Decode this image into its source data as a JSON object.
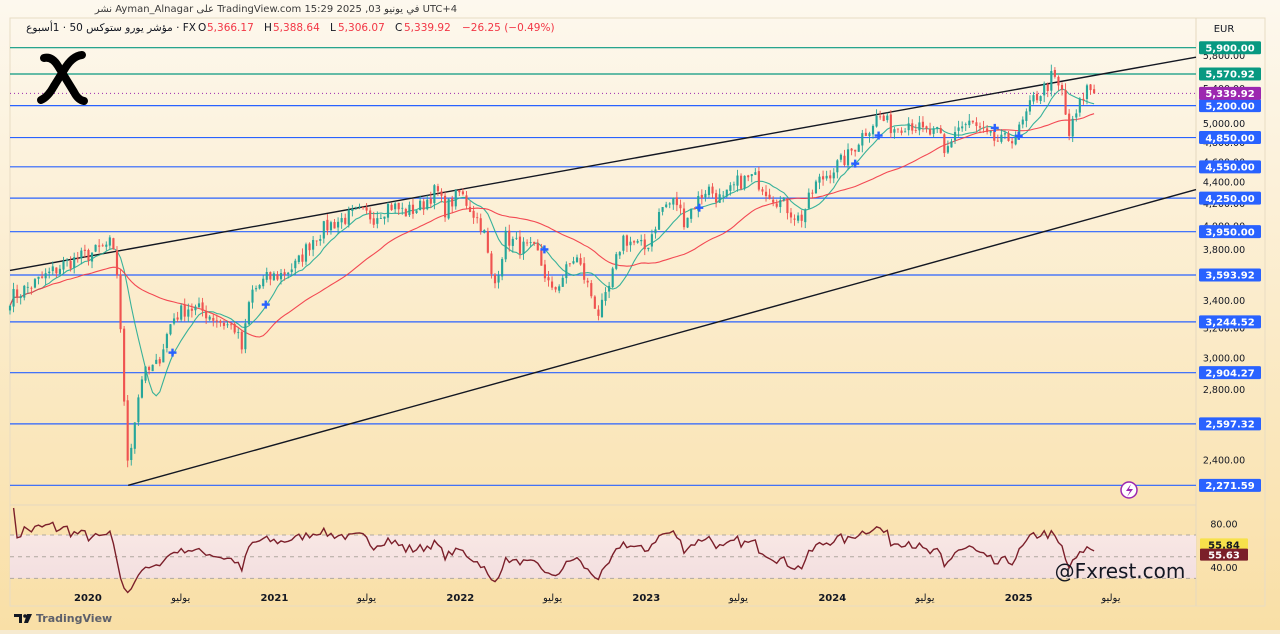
{
  "header": {
    "title": "نشر Ayman_Alnagar على TradingView.com في يونيو 03, 2025 15:29 UTC+4",
    "symbol": "مؤشر يورو ستوكس 50 · 1أسبوع · FX",
    "o_label": "O",
    "o_value": "5,366.17",
    "h_label": "H",
    "h_value": "5,388.64",
    "l_label": "L",
    "l_value": "5,306.07",
    "c_label": "C",
    "c_value": "5,339.92",
    "change": "−26.25 (−0.49%)"
  },
  "currency": "EUR",
  "watermark_handle": "@Fxrest.com",
  "tradingview_logo_text": "TradingView",
  "logo_icon": "x-brand-icon",
  "colors": {
    "background_top": "#fdf8ee",
    "background_bottom": "#f9dfa6",
    "up_candle": "#26a69a",
    "down_candle": "#ef5350",
    "level_line": "#2962ff",
    "channel_line": "#131722",
    "resistance_line": "#089981",
    "ma_fast": "#22ab94",
    "ma_slow": "#f23645",
    "rsi_line": "#7b1f2a",
    "cross_marker": "#2962ff"
  },
  "chart_data": [
    {
      "type": "candlestick",
      "title": "",
      "currency": "EUR",
      "y_scale": "log",
      "ylim": [
        2200,
        6000
      ],
      "y_ticks": [
        "2,400.00",
        "2,600.00",
        "2,800.00",
        "3,000.00",
        "3,200.00",
        "3,400.00",
        "3,600.00",
        "3,800.00",
        "4,000.00",
        "4,200.00",
        "4,400.00",
        "4,600.00",
        "4,800.00",
        "5,000.00",
        "5,200.00",
        "5,400.00",
        "5,600.00",
        "5,800.00"
      ],
      "x_range": [
        "2019-08-01",
        "2025-12-15"
      ],
      "x_ticks": [
        {
          "date": "2020-01-01",
          "label": "2020",
          "bold": true
        },
        {
          "date": "2020-07-01",
          "label": "يوليو",
          "bold": false
        },
        {
          "date": "2021-01-01",
          "label": "2021",
          "bold": true
        },
        {
          "date": "2021-07-01",
          "label": "يوليو",
          "bold": false
        },
        {
          "date": "2022-01-01",
          "label": "2022",
          "bold": true
        },
        {
          "date": "2022-07-01",
          "label": "يوليو",
          "bold": false
        },
        {
          "date": "2023-01-01",
          "label": "2023",
          "bold": true
        },
        {
          "date": "2023-07-01",
          "label": "يوليو",
          "bold": false
        },
        {
          "date": "2024-01-01",
          "label": "2024",
          "bold": true
        },
        {
          "date": "2024-07-01",
          "label": "يوليو",
          "bold": false
        },
        {
          "date": "2025-01-01",
          "label": "2025",
          "bold": true
        },
        {
          "date": "2025-07-01",
          "label": "يوليو",
          "bold": false
        }
      ],
      "close_path": [
        [
          "2019-08-01",
          3420
        ],
        [
          "2019-09-15",
          3520
        ],
        [
          "2019-11-15",
          3680
        ],
        [
          "2020-01-15",
          3780
        ],
        [
          "2020-02-15",
          3850
        ],
        [
          "2020-03-01",
          3550
        ],
        [
          "2020-03-15",
          2500
        ],
        [
          "2020-03-20",
          2390
        ],
        [
          "2020-04-15",
          2880
        ],
        [
          "2020-05-15",
          2950
        ],
        [
          "2020-06-15",
          3270
        ],
        [
          "2020-07-15",
          3350
        ],
        [
          "2020-08-15",
          3320
        ],
        [
          "2020-09-15",
          3250
        ],
        [
          "2020-10-15",
          3200
        ],
        [
          "2020-10-30",
          3050
        ],
        [
          "2020-11-15",
          3450
        ],
        [
          "2020-12-15",
          3560
        ],
        [
          "2021-01-15",
          3600
        ],
        [
          "2021-02-15",
          3680
        ],
        [
          "2021-03-15",
          3880
        ],
        [
          "2021-04-15",
          4000
        ],
        [
          "2021-05-15",
          4060
        ],
        [
          "2021-06-15",
          4120
        ],
        [
          "2021-07-15",
          4080
        ],
        [
          "2021-08-15",
          4190
        ],
        [
          "2021-09-15",
          4120
        ],
        [
          "2021-10-15",
          4170
        ],
        [
          "2021-11-15",
          4330
        ],
        [
          "2021-12-01",
          4140
        ],
        [
          "2021-12-31",
          4300
        ],
        [
          "2022-01-15",
          4200
        ],
        [
          "2022-02-15",
          3980
        ],
        [
          "2022-03-07",
          3480
        ],
        [
          "2022-03-31",
          3900
        ],
        [
          "2022-04-30",
          3820
        ],
        [
          "2022-05-31",
          3780
        ],
        [
          "2022-06-30",
          3450
        ],
        [
          "2022-08-15",
          3750
        ],
        [
          "2022-09-30",
          3300
        ],
        [
          "2022-10-15",
          3420
        ],
        [
          "2022-11-15",
          3900
        ],
        [
          "2022-12-31",
          3800
        ],
        [
          "2023-01-31",
          4160
        ],
        [
          "2023-02-28",
          4230
        ],
        [
          "2023-03-15",
          4050
        ],
        [
          "2023-04-30",
          4350
        ],
        [
          "2023-05-31",
          4220
        ],
        [
          "2023-06-30",
          4400
        ],
        [
          "2023-07-31",
          4450
        ],
        [
          "2023-08-31",
          4300
        ],
        [
          "2023-09-30",
          4180
        ],
        [
          "2023-10-30",
          4050
        ],
        [
          "2023-11-30",
          4380
        ],
        [
          "2023-12-31",
          4520
        ],
        [
          "2024-01-31",
          4650
        ],
        [
          "2024-02-29",
          4880
        ],
        [
          "2024-03-31",
          5080
        ],
        [
          "2024-04-30",
          4950
        ],
        [
          "2024-05-31",
          5020
        ],
        [
          "2024-06-30",
          4900
        ],
        [
          "2024-07-31",
          4880
        ],
        [
          "2024-08-07",
          4650
        ],
        [
          "2024-08-31",
          4950
        ],
        [
          "2024-09-30",
          5000
        ],
        [
          "2024-10-31",
          4850
        ],
        [
          "2024-11-30",
          4800
        ],
        [
          "2024-12-31",
          4900
        ],
        [
          "2025-01-31",
          5280
        ],
        [
          "2025-02-28",
          5450
        ],
        [
          "2025-03-07",
          5540
        ],
        [
          "2025-03-31",
          5300
        ],
        [
          "2025-04-07",
          4830
        ],
        [
          "2025-04-30",
          5200
        ],
        [
          "2025-05-15",
          5400
        ],
        [
          "2025-05-31",
          5380
        ],
        [
          "2025-06-03",
          5339.92
        ]
      ],
      "levels": [
        {
          "value": 5900,
          "label": "5,900.00",
          "color": "#089981"
        },
        {
          "value": 5570.92,
          "label": "5,570.92",
          "color": "#089981"
        },
        {
          "value": 5200,
          "label": "5,200.00",
          "color": "#2962ff"
        },
        {
          "value": 4850,
          "label": "4,850.00",
          "color": "#2962ff"
        },
        {
          "value": 4550,
          "label": "4,550.00",
          "color": "#2962ff"
        },
        {
          "value": 4250,
          "label": "4,250.00",
          "color": "#2962ff"
        },
        {
          "value": 3950,
          "label": "3,950.00",
          "color": "#2962ff"
        },
        {
          "value": 3593.92,
          "label": "3,593.92",
          "color": "#2962ff"
        },
        {
          "value": 3244.52,
          "label": "3,244.52",
          "color": "#2962ff"
        },
        {
          "value": 2904.27,
          "label": "2,904.27",
          "color": "#2962ff"
        },
        {
          "value": 2597.32,
          "label": "2,597.32",
          "color": "#2962ff"
        },
        {
          "value": 2271.59,
          "label": "2,271.59",
          "color": "#2962ff"
        }
      ],
      "last_price": {
        "value": 5339.92,
        "label": "5,339.92",
        "color": "#9c27b0"
      },
      "channel": {
        "upper": [
          [
            "2019-08-01",
            3630
          ],
          [
            "2025-12-15",
            5780
          ]
        ],
        "lower": [
          [
            "2020-03-20",
            2271.59
          ],
          [
            "2025-12-15",
            4330
          ]
        ]
      },
      "ma_cross_markers": [
        "2020-06-15",
        "2020-12-15",
        "2022-06-15",
        "2023-04-15",
        "2024-02-15",
        "2024-04-01",
        "2024-11-15",
        "2025-01-01"
      ]
    },
    {
      "type": "line",
      "title": "",
      "ylim": [
        10,
        95
      ],
      "y_ticks": [
        "40.00",
        "60.00",
        "80.00"
      ],
      "bands": [
        30,
        50,
        70
      ],
      "values_shown": [
        {
          "label": "55.84",
          "bg": "#f7e14b",
          "fg": "#131722"
        },
        {
          "label": "55.63",
          "bg": "#7b1f2a",
          "fg": "#ffffff"
        }
      ]
    }
  ]
}
